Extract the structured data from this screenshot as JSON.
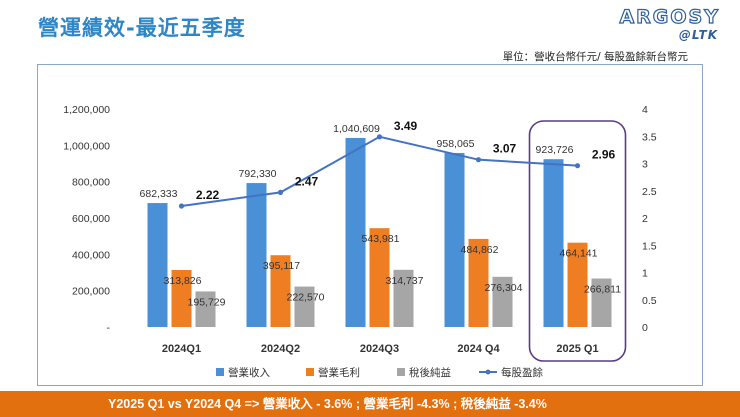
{
  "slide": {
    "title": "營運績效-最近五季度",
    "unit_note": "單位：營收台幣仟元/ 每股盈餘新台幣元",
    "footer": "Y2025 Q1 vs Y2024 Q4 => 營業收入 - 3.6% ; 營業毛利 -4.3% ; 稅後純益 -3.4%"
  },
  "logo": {
    "main": "ARGOSY",
    "sub": "@LTK"
  },
  "colors": {
    "title": "#2f86c5",
    "revenue": "#4a90d6",
    "gross_profit": "#ef7d22",
    "net_income": "#a6a6a6",
    "eps": "#4472c4",
    "highlight_box": "#5a3a8a",
    "footer": "#e2700f"
  },
  "chart_data": {
    "type": "bar",
    "categories": [
      "2024Q1",
      "2024Q2",
      "2024Q3",
      "2024 Q4",
      "2025 Q1"
    ],
    "series": [
      {
        "name": "營業收入",
        "type": "bar",
        "axis": "left",
        "values": [
          682333,
          792330,
          1040609,
          958065,
          923726
        ],
        "labels": [
          "682,333",
          "792,330",
          "1,040,609",
          "958,065",
          "923,726"
        ]
      },
      {
        "name": "營業毛利",
        "type": "bar",
        "axis": "left",
        "values": [
          313826,
          395117,
          543981,
          484862,
          464141
        ],
        "labels": [
          "313,826",
          "395,117",
          "543,981",
          "484,862",
          "464,141"
        ]
      },
      {
        "name": "稅後純益",
        "type": "bar",
        "axis": "left",
        "values": [
          195729,
          222570,
          314737,
          276304,
          266811
        ],
        "labels": [
          "195,729",
          "222,570",
          "314,737",
          "276,304",
          "266,811"
        ]
      },
      {
        "name": "每股盈餘",
        "type": "line",
        "axis": "right",
        "values": [
          2.22,
          2.47,
          3.49,
          3.07,
          2.96
        ],
        "labels": [
          "2.22",
          "2.47",
          "3.49",
          "3.07",
          "2.96"
        ]
      }
    ],
    "left_axis": {
      "range": [
        0,
        1200000
      ],
      "ticks": [
        0,
        200000,
        400000,
        600000,
        800000,
        1000000,
        1200000
      ],
      "tick_labels": [
        "-",
        "200,000",
        "400,000",
        "600,000",
        "800,000",
        "1,000,000",
        "1,200,000"
      ]
    },
    "right_axis": {
      "range": [
        0,
        4
      ],
      "ticks": [
        0,
        0.5,
        1,
        1.5,
        2,
        2.5,
        3,
        3.5,
        4
      ],
      "tick_labels": [
        "0",
        "0.5",
        "1",
        "1.5",
        "2",
        "2.5",
        "3",
        "3.5",
        "4"
      ]
    },
    "highlight_category": "2025 Q1",
    "grid": false,
    "legend_position": "bottom"
  }
}
